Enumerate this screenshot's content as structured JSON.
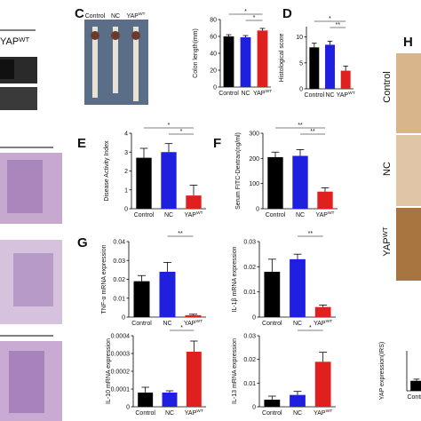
{
  "figure": {
    "blot_label": {
      "text": "YAP",
      "sup": "WT"
    },
    "panel_h": "H",
    "h_labels": [
      {
        "text": "Control"
      },
      {
        "text": "NC"
      },
      {
        "text": "YAP",
        "sup": "WT"
      }
    ],
    "photo_c_labels": [
      {
        "text": "Control"
      },
      {
        "text": "NC"
      },
      {
        "text": "YAP",
        "sup": "WT"
      }
    ]
  },
  "chart_data": [
    {
      "type": "bar",
      "panel": "C",
      "y_label": "Colon length(mm)",
      "categories": [
        {
          "text": "Control"
        },
        {
          "text": "NC"
        },
        {
          "text": "YAP",
          "sup": "WT"
        }
      ],
      "values": [
        60,
        59,
        67
      ],
      "errors": [
        2,
        2,
        2.5
      ],
      "colors": [
        "#000000",
        "#1f1fe0",
        "#e01f1f"
      ],
      "ylim": [
        0,
        80
      ],
      "yticks": [
        0,
        20,
        40,
        60,
        80
      ],
      "annotations": [
        "*",
        "*"
      ]
    },
    {
      "type": "bar",
      "panel": "D",
      "y_label": "Histological score",
      "categories": [
        {
          "text": "Control"
        },
        {
          "text": "NC"
        },
        {
          "text": "YAP",
          "sup": "WT"
        }
      ],
      "values": [
        8,
        8.5,
        3.5
      ],
      "errors": [
        0.8,
        0.7,
        0.9
      ],
      "colors": [
        "#000000",
        "#1f1fe0",
        "#e01f1f"
      ],
      "ylim": [
        0,
        12
      ],
      "yticks": [
        0,
        5,
        10
      ],
      "annotations": [
        "*",
        "**"
      ]
    },
    {
      "type": "bar",
      "panel": "E",
      "y_label": "Disease Activity Index",
      "categories": [
        {
          "text": "Control"
        },
        {
          "text": "NC"
        },
        {
          "text": "YAP",
          "sup": "WT"
        }
      ],
      "values": [
        2.7,
        3.0,
        0.7
      ],
      "errors": [
        0.5,
        0.45,
        0.55
      ],
      "colors": [
        "#000000",
        "#1f1fe0",
        "#e01f1f"
      ],
      "ylim": [
        0,
        4
      ],
      "yticks": [
        0,
        1,
        2,
        3,
        4
      ],
      "annotations": [
        "*",
        "*"
      ]
    },
    {
      "type": "bar",
      "panel": "F",
      "y_label": "Serum FITC-Dextran(ng/ml)",
      "categories": [
        {
          "text": "Control"
        },
        {
          "text": "NC"
        },
        {
          "text": "YAP",
          "sup": "WT"
        }
      ],
      "values": [
        205,
        210,
        68
      ],
      "errors": [
        20,
        25,
        15
      ],
      "colors": [
        "#000000",
        "#1f1fe0",
        "#e01f1f"
      ],
      "ylim": [
        0,
        300
      ],
      "yticks": [
        0,
        100,
        200,
        300
      ],
      "annotations": [
        "**",
        "**"
      ]
    },
    {
      "type": "bar",
      "panel": "G",
      "y_label": "TNF-α mRNA expression",
      "categories": [
        {
          "text": "Control"
        },
        {
          "text": "NC"
        },
        {
          "text": "YAP",
          "sup": "WT"
        }
      ],
      "values": [
        0.019,
        0.024,
        0.001
      ],
      "errors": [
        0.003,
        0.005,
        0.0005
      ],
      "colors": [
        "#000000",
        "#1f1fe0",
        "#e01f1f"
      ],
      "ylim": [
        0,
        0.04
      ],
      "yticks": [
        0,
        0.01,
        0.02,
        0.03,
        0.04
      ],
      "annotations": [
        "**"
      ]
    },
    {
      "type": "bar",
      "y_label": "IL-1β mRNA expression",
      "categories": [
        {
          "text": "Control"
        },
        {
          "text": "NC"
        },
        {
          "text": "YAP",
          "sup": "WT"
        }
      ],
      "values": [
        0.018,
        0.023,
        0.004
      ],
      "errors": [
        0.005,
        0.002,
        0.0008
      ],
      "colors": [
        "#000000",
        "#1f1fe0",
        "#e01f1f"
      ],
      "ylim": [
        0,
        0.03
      ],
      "yticks": [
        0,
        0.01,
        0.02,
        0.03
      ],
      "annotations": [
        "**"
      ]
    },
    {
      "type": "bar",
      "y_label": "IL-10 mRNA expression",
      "categories": [
        {
          "text": "Control"
        },
        {
          "text": "NC"
        },
        {
          "text": "YAP",
          "sup": "WT"
        }
      ],
      "values": [
        8e-05,
        8e-05,
        0.00031
      ],
      "errors": [
        3e-05,
        1e-05,
        6e-05
      ],
      "colors": [
        "#000000",
        "#1f1fe0",
        "#e01f1f"
      ],
      "ylim": [
        0,
        0.0004
      ],
      "yticks": [
        0,
        0.0001,
        0.0002,
        0.0003,
        0.0004
      ],
      "annotations": [
        "*"
      ]
    },
    {
      "type": "bar",
      "y_label": "IL-13 mRNA expression",
      "categories": [
        {
          "text": "Control"
        },
        {
          "text": "NC"
        },
        {
          "text": "YAP",
          "sup": "WT"
        }
      ],
      "values": [
        0.003,
        0.005,
        0.019
      ],
      "errors": [
        0.0015,
        0.0015,
        0.004
      ],
      "colors": [
        "#000000",
        "#1f1fe0",
        "#e01f1f"
      ],
      "ylim": [
        0,
        0.03
      ],
      "yticks": [
        0,
        0.01,
        0.02,
        0.03
      ],
      "annotations": [
        "*"
      ]
    },
    {
      "type": "bar",
      "y_label": "YAP expression(IRS)",
      "categories": [
        {
          "text": "Contro"
        }
      ],
      "values": [
        3
      ],
      "errors": [
        0.5
      ],
      "colors": [
        "#000000"
      ],
      "ylim": [
        0,
        12
      ],
      "yticks": [],
      "annotations": []
    }
  ]
}
